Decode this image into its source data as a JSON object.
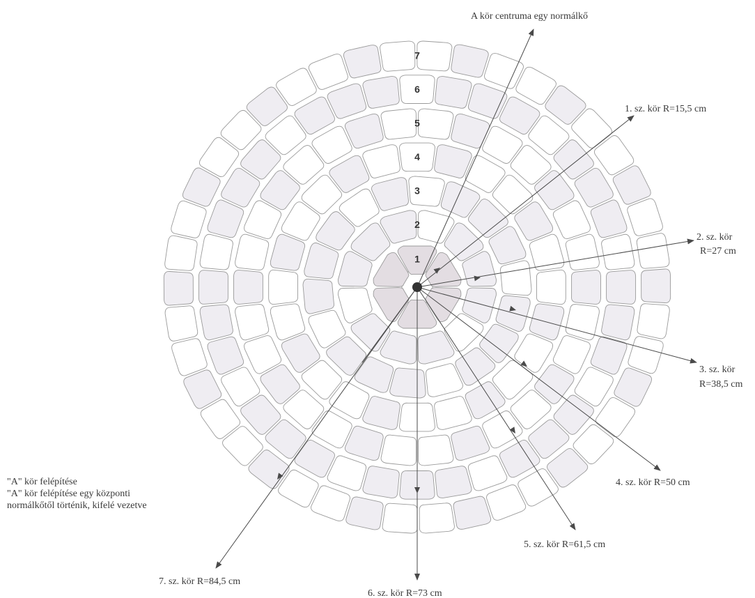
{
  "center_label": "A kör centruma egy normálkő",
  "rings": [
    {
      "number": "1",
      "label": "1. sz. kör R=15,5 cm",
      "radius_cm": 15.5
    },
    {
      "number": "2",
      "label_lines": [
        "2. sz. kör",
        "R=27 cm"
      ],
      "radius_cm": 27
    },
    {
      "number": "3",
      "label_lines": [
        "3. sz. kör",
        "R=38,5 cm"
      ],
      "radius_cm": 38.5
    },
    {
      "number": "4",
      "label": "4. sz. kör R=50 cm",
      "radius_cm": 50
    },
    {
      "number": "5",
      "label": "5. sz. kör R=61,5 cm",
      "radius_cm": 61.5
    },
    {
      "number": "6",
      "label": "6. sz. kör R=73 cm",
      "radius_cm": 73
    },
    {
      "number": "7",
      "label": "7. sz. kör R=84,5 cm",
      "radius_cm": 84.5
    }
  ],
  "note": {
    "line1": "\"A\" kör felépítése",
    "line2": "\"A\" kör felépítése egy központi",
    "line3": "normálkőtől történik, kifelé vezetve"
  },
  "colors": {
    "stone_light": "#ffffff",
    "stone_tint": "#efedf2",
    "stone_core": "#e3dde2",
    "stroke": "#9a9a9a",
    "arrow": "#4a4a4a"
  }
}
